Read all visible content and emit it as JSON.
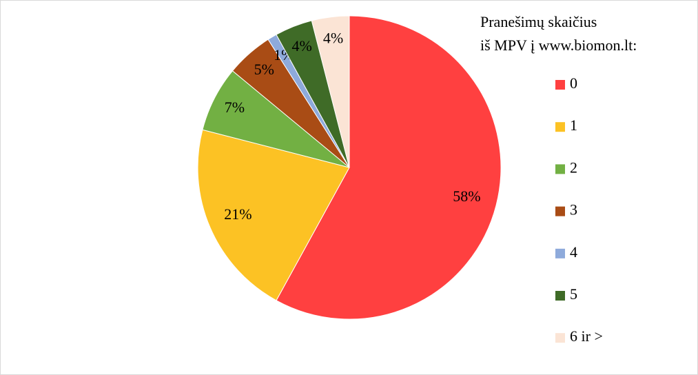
{
  "chart_data": {
    "type": "pie",
    "legend_title": [
      "Pranešimų  skaičius",
      "iš MPV į www.biomon.lt:"
    ],
    "categories": [
      "0",
      "1",
      "2",
      "3",
      "4",
      "5",
      "6 ir >"
    ],
    "values": [
      58,
      21,
      7,
      5,
      1,
      4,
      4
    ],
    "value_labels": [
      "58%",
      "21%",
      "7%",
      "5%",
      "1%",
      "4%",
      "4%"
    ],
    "colors": [
      "#ff4040",
      "#fcc224",
      "#72b043",
      "#a94c15",
      "#8eaadb",
      "#3f6b27",
      "#fbe4d5"
    ],
    "legend": "right"
  }
}
